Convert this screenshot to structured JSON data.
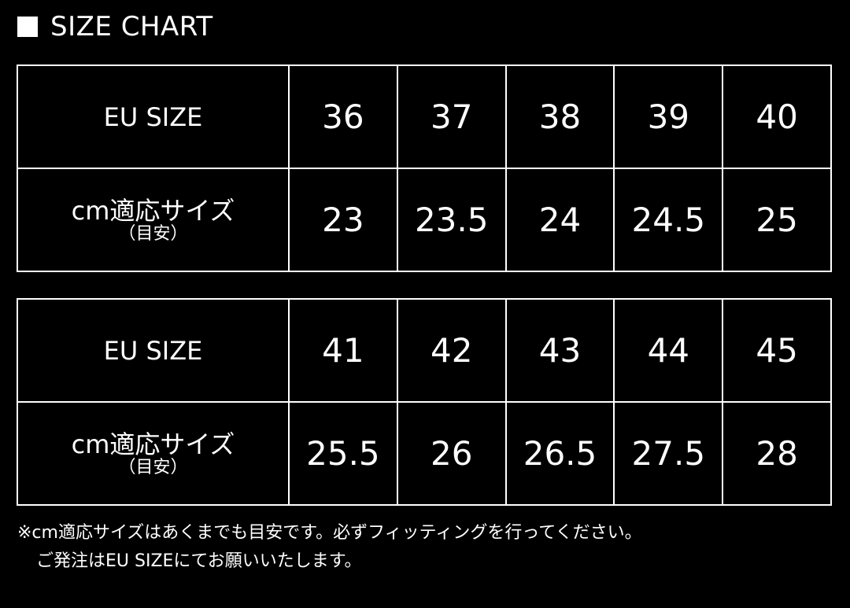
{
  "title": "SIZE CHART",
  "tables": [
    {
      "row1_label": "EU SIZE",
      "row2_label": "cm適応サイズ",
      "row2_sublabel": "（目安）",
      "eu": [
        "36",
        "37",
        "38",
        "39",
        "40"
      ],
      "cm": [
        "23",
        "23.5",
        "24",
        "24.5",
        "25"
      ]
    },
    {
      "row1_label": "EU SIZE",
      "row2_label": "cm適応サイズ",
      "row2_sublabel": "（目安）",
      "eu": [
        "41",
        "42",
        "43",
        "44",
        "45"
      ],
      "cm": [
        "25.5",
        "26",
        "26.5",
        "27.5",
        "28"
      ]
    }
  ],
  "notes": [
    "※cm適応サイズはあくまでも目安です。必ずフィッティングを行ってください。",
    "ご発注はEU SIZEにてお願いいたします。"
  ]
}
